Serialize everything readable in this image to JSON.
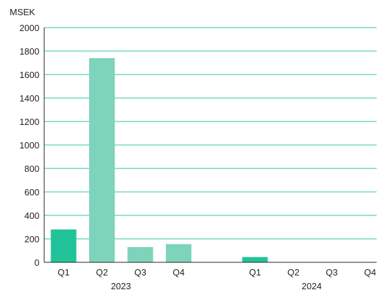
{
  "chart_data": {
    "type": "bar",
    "ylabel": "MSEK",
    "ylim": [
      0,
      2000
    ],
    "yticks": [
      0,
      200,
      400,
      600,
      800,
      1000,
      1200,
      1400,
      1600,
      1800,
      2000
    ],
    "grid": true,
    "groups": [
      {
        "label": "2023",
        "categories": [
          "Q1",
          "Q2",
          "Q3",
          "Q4"
        ],
        "values": [
          280,
          1740,
          130,
          155
        ]
      },
      {
        "label": "2024",
        "categories": [
          "Q1",
          "Q2",
          "Q3",
          "Q4"
        ],
        "values": [
          45,
          0,
          0,
          0
        ]
      }
    ],
    "colors": {
      "highlight": "#22c39a",
      "bar": "#7dd4bb",
      "grid": "#2ec4a0",
      "axis": "#222222",
      "text": "#222222"
    }
  }
}
